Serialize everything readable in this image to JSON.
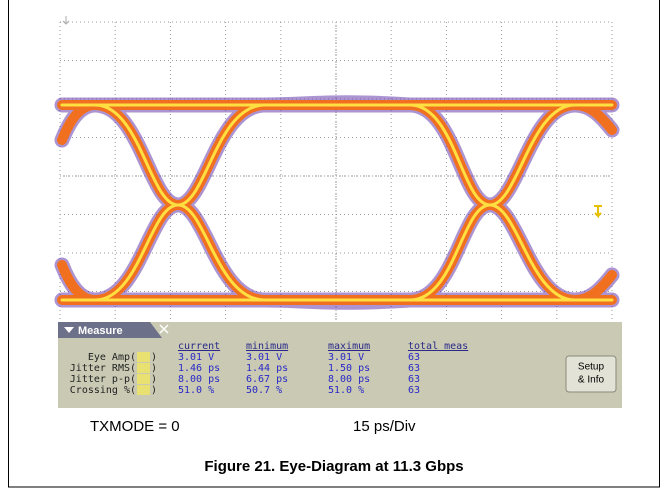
{
  "measure": {
    "title": "Measure",
    "headers": [
      "current",
      "minimum",
      "maximum",
      "total meas"
    ],
    "bracket": [
      "(",
      ")"
    ],
    "rows": [
      {
        "label": "Eye Amp",
        "values": [
          "3.01 V",
          "3.01 V",
          "3.01 V",
          "63"
        ]
      },
      {
        "label": "Jitter RMS",
        "values": [
          "1.46 ps",
          "1.44 ps",
          "1.50 ps",
          "63"
        ]
      },
      {
        "label": "Jitter p-p",
        "values": [
          "8.00 ps",
          "6.67 ps",
          "8.00 ps",
          "63"
        ]
      },
      {
        "label": "Crossing %",
        "values": [
          "51.0 %",
          "50.7 %",
          "51.0 %",
          "63"
        ]
      }
    ]
  },
  "button": [
    "Setup",
    "& Info"
  ],
  "captions": {
    "mode": "TXMODE = 0",
    "scale": "15 ps/Div"
  },
  "figure_caption": "Figure 21. Eye-Diagram at 11.3 Gbps"
}
